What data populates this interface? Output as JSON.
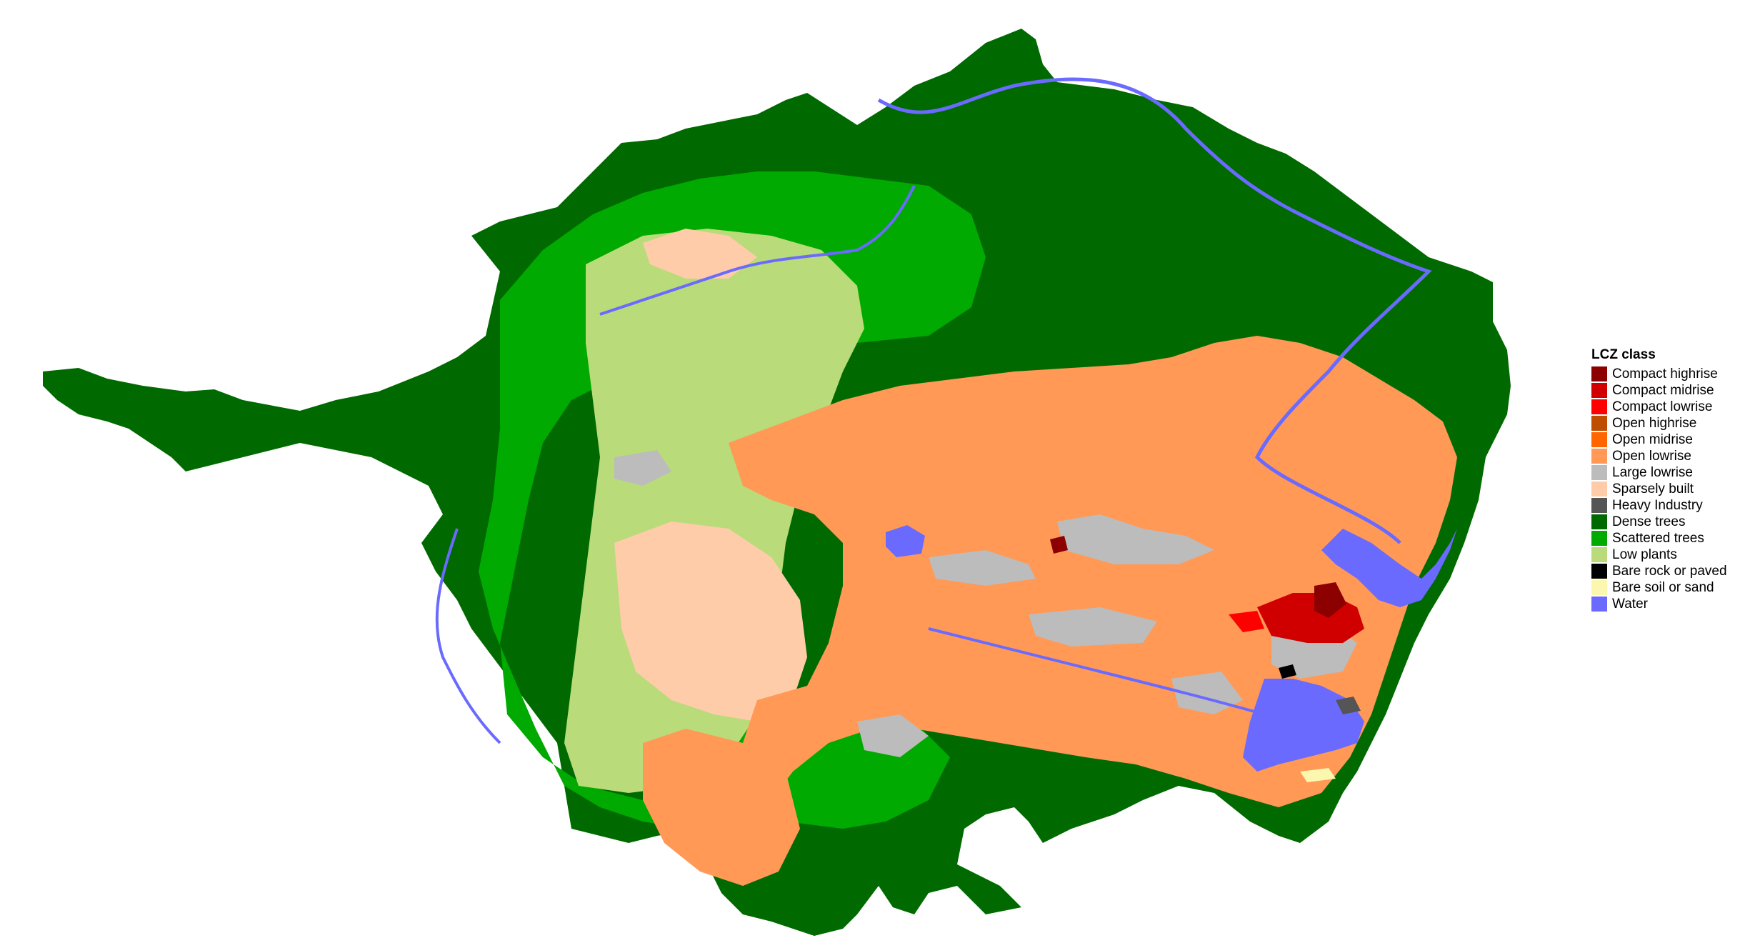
{
  "legend": {
    "title": "LCZ class",
    "items": [
      {
        "label": "Compact highrise",
        "color": "#8c0000"
      },
      {
        "label": "Compact midrise",
        "color": "#d10000"
      },
      {
        "label": "Compact lowrise",
        "color": "#ff0000"
      },
      {
        "label": "Open highrise",
        "color": "#bf4d00"
      },
      {
        "label": "Open midrise",
        "color": "#ff6600"
      },
      {
        "label": "Open lowrise",
        "color": "#ff9955"
      },
      {
        "label": "Large lowrise",
        "color": "#bcbcbc"
      },
      {
        "label": "Sparsely built",
        "color": "#ffccaa"
      },
      {
        "label": "Heavy Industry",
        "color": "#555555"
      },
      {
        "label": "Dense trees",
        "color": "#006a00"
      },
      {
        "label": "Scattered trees",
        "color": "#00aa00"
      },
      {
        "label": "Low plants",
        "color": "#b9db79"
      },
      {
        "label": "Bare rock or paved",
        "color": "#000000"
      },
      {
        "label": "Bare soil or sand",
        "color": "#fbf7ae"
      },
      {
        "label": "Water",
        "color": "#6a6aff"
      }
    ]
  }
}
